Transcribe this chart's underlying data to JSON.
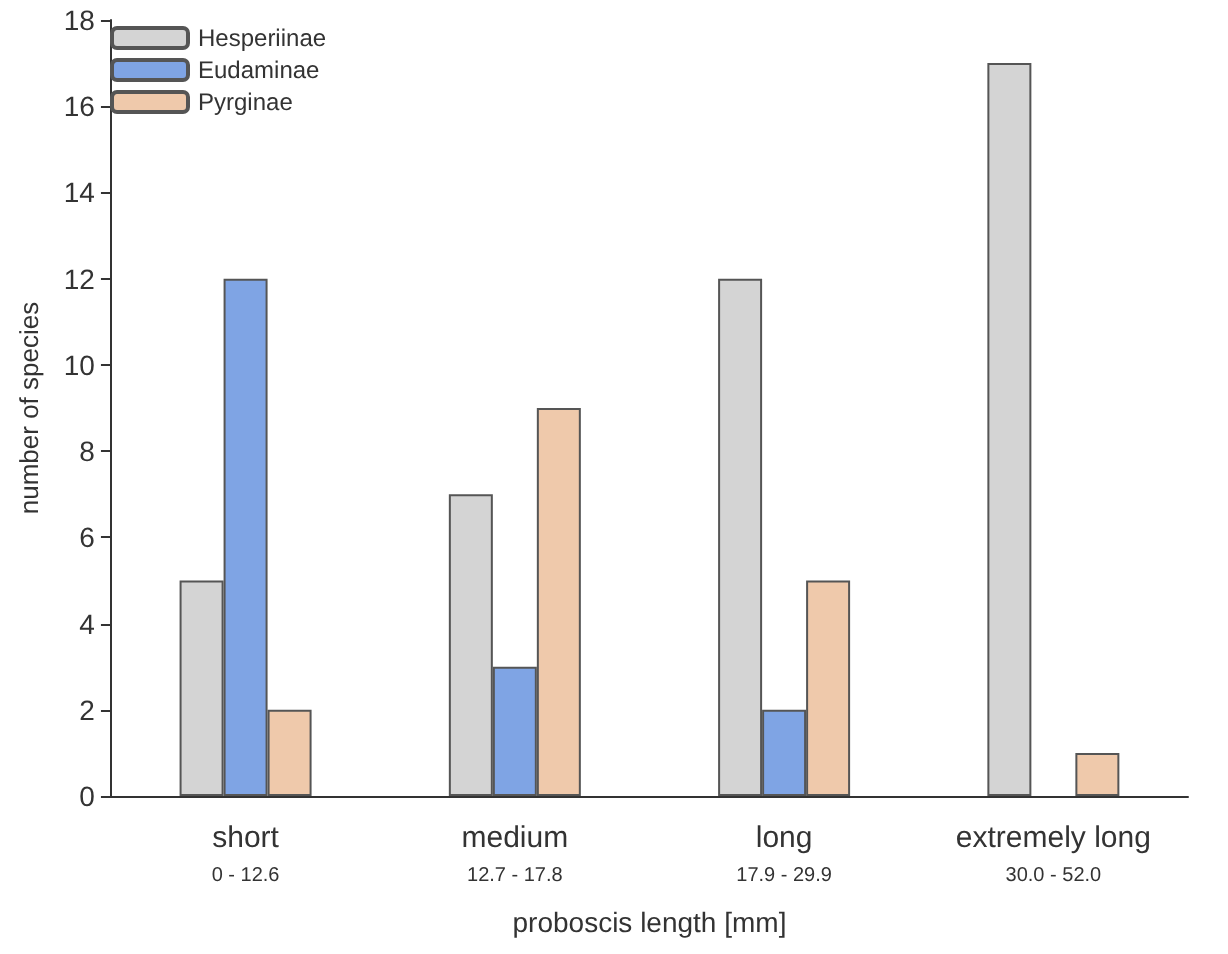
{
  "chart_data": {
    "type": "bar",
    "xlabel": "proboscis length [mm]",
    "ylabel": "number of species",
    "categories": [
      "short\n0 - 12.6",
      "medium\n12.7 - 17.8",
      "long\n17.9 - 29.9",
      "extremely long\n30.0 - 52.0"
    ],
    "series": [
      {
        "name": "Hesperiinae",
        "color": "#d4d4d4",
        "values": [
          5,
          7,
          12,
          17
        ]
      },
      {
        "name": "Eudaminae",
        "color": "#7fa4e4",
        "values": [
          12,
          3,
          2,
          null
        ]
      },
      {
        "name": "Pyrginae",
        "color": "#efc9ab",
        "values": [
          2,
          9,
          5,
          1
        ]
      }
    ],
    "ylim": [
      0,
      18
    ],
    "yticks": [
      0,
      2,
      4,
      6,
      8,
      10,
      12,
      14,
      16,
      18
    ],
    "grid": false,
    "legend": "top left"
  }
}
